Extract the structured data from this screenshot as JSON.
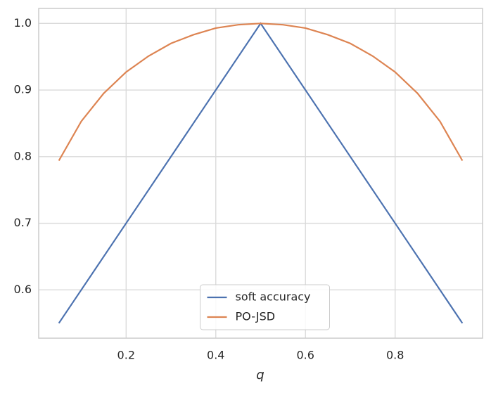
{
  "chart_data": {
    "type": "line",
    "xlabel": "q",
    "x": [
      0.05,
      0.1,
      0.15,
      0.2,
      0.25,
      0.3,
      0.35,
      0.4,
      0.45,
      0.5,
      0.55,
      0.6,
      0.65,
      0.7,
      0.75,
      0.8,
      0.85,
      0.9,
      0.95
    ],
    "series": [
      {
        "name": "soft accuracy",
        "color": "#4c72b0",
        "values": [
          0.55,
          0.6,
          0.65,
          0.7,
          0.75,
          0.8,
          0.85,
          0.9,
          0.95,
          1.0,
          0.95,
          0.9,
          0.85,
          0.8,
          0.75,
          0.7,
          0.65,
          0.6,
          0.55
        ]
      },
      {
        "name": "PO-JSD",
        "color": "#dd8452",
        "values": [
          0.794,
          0.853,
          0.895,
          0.927,
          0.951,
          0.97,
          0.983,
          0.993,
          0.998,
          1.0,
          0.998,
          0.993,
          0.983,
          0.97,
          0.951,
          0.927,
          0.895,
          0.853,
          0.794
        ]
      }
    ],
    "xlim": [
      0.005,
      0.995
    ],
    "xticks": [
      0.2,
      0.4,
      0.6,
      0.8
    ],
    "ylim": [
      0.5275,
      1.0225
    ],
    "yticks": [
      0.6,
      0.7,
      0.8,
      0.9,
      {
        "value": 1.0,
        "label": "1.0"
      }
    ],
    "grid": true,
    "legend": "lower center"
  }
}
